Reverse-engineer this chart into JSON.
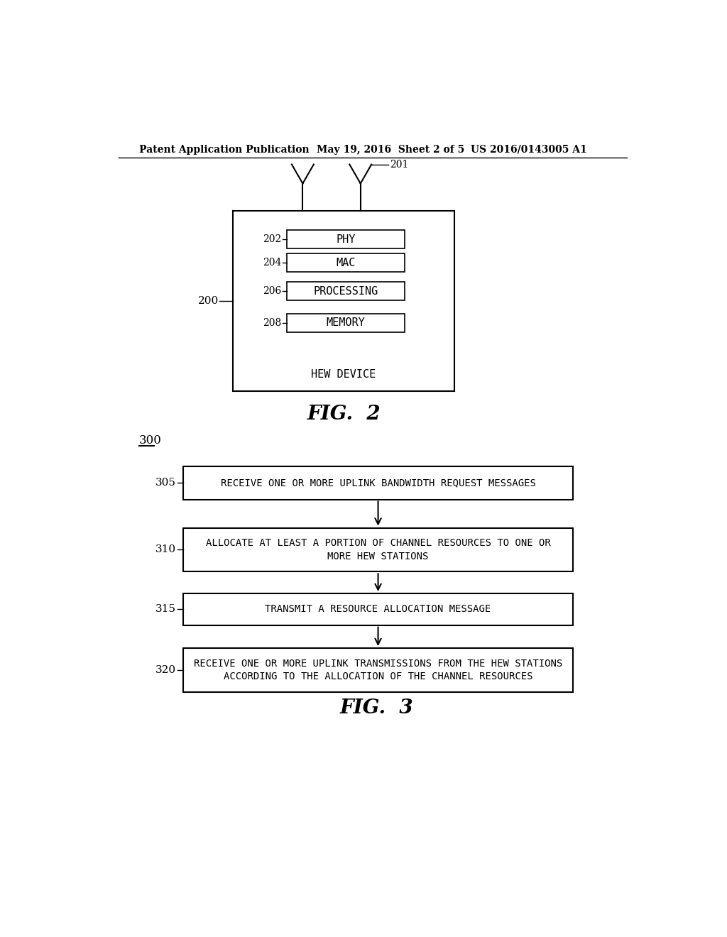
{
  "bg_color": "#ffffff",
  "header_left": "Patent Application Publication",
  "header_mid": "May 19, 2016  Sheet 2 of 5",
  "header_right": "US 2016/0143005 A1",
  "fig2_label": "FIG.  2",
  "fig3_label": "FIG.  3",
  "fig2_ref": "200",
  "fig2_box_label": "HEW DEVICE",
  "fig2_components": [
    {
      "label": "202",
      "text": "PHY"
    },
    {
      "label": "204",
      "text": "MAC"
    },
    {
      "label": "206",
      "text": "PROCESSING"
    },
    {
      "label": "208",
      "text": "MEMORY"
    }
  ],
  "fig2_antenna_ref": "201",
  "fig3_ref": "300",
  "fig3_steps": [
    {
      "label": "305",
      "text": "RECEIVE ONE OR MORE UPLINK BANDWIDTH REQUEST MESSAGES"
    },
    {
      "label": "310",
      "text": "ALLOCATE AT LEAST A PORTION OF CHANNEL RESOURCES TO ONE OR\nMORE HEW STATIONS"
    },
    {
      "label": "315",
      "text": "TRANSMIT A RESOURCE ALLOCATION MESSAGE"
    },
    {
      "label": "320",
      "text": "RECEIVE ONE OR MORE UPLINK TRANSMISSIONS FROM THE HEW STATIONS\nACCORDING TO THE ALLOCATION OF THE CHANNEL RESOURCES"
    }
  ]
}
